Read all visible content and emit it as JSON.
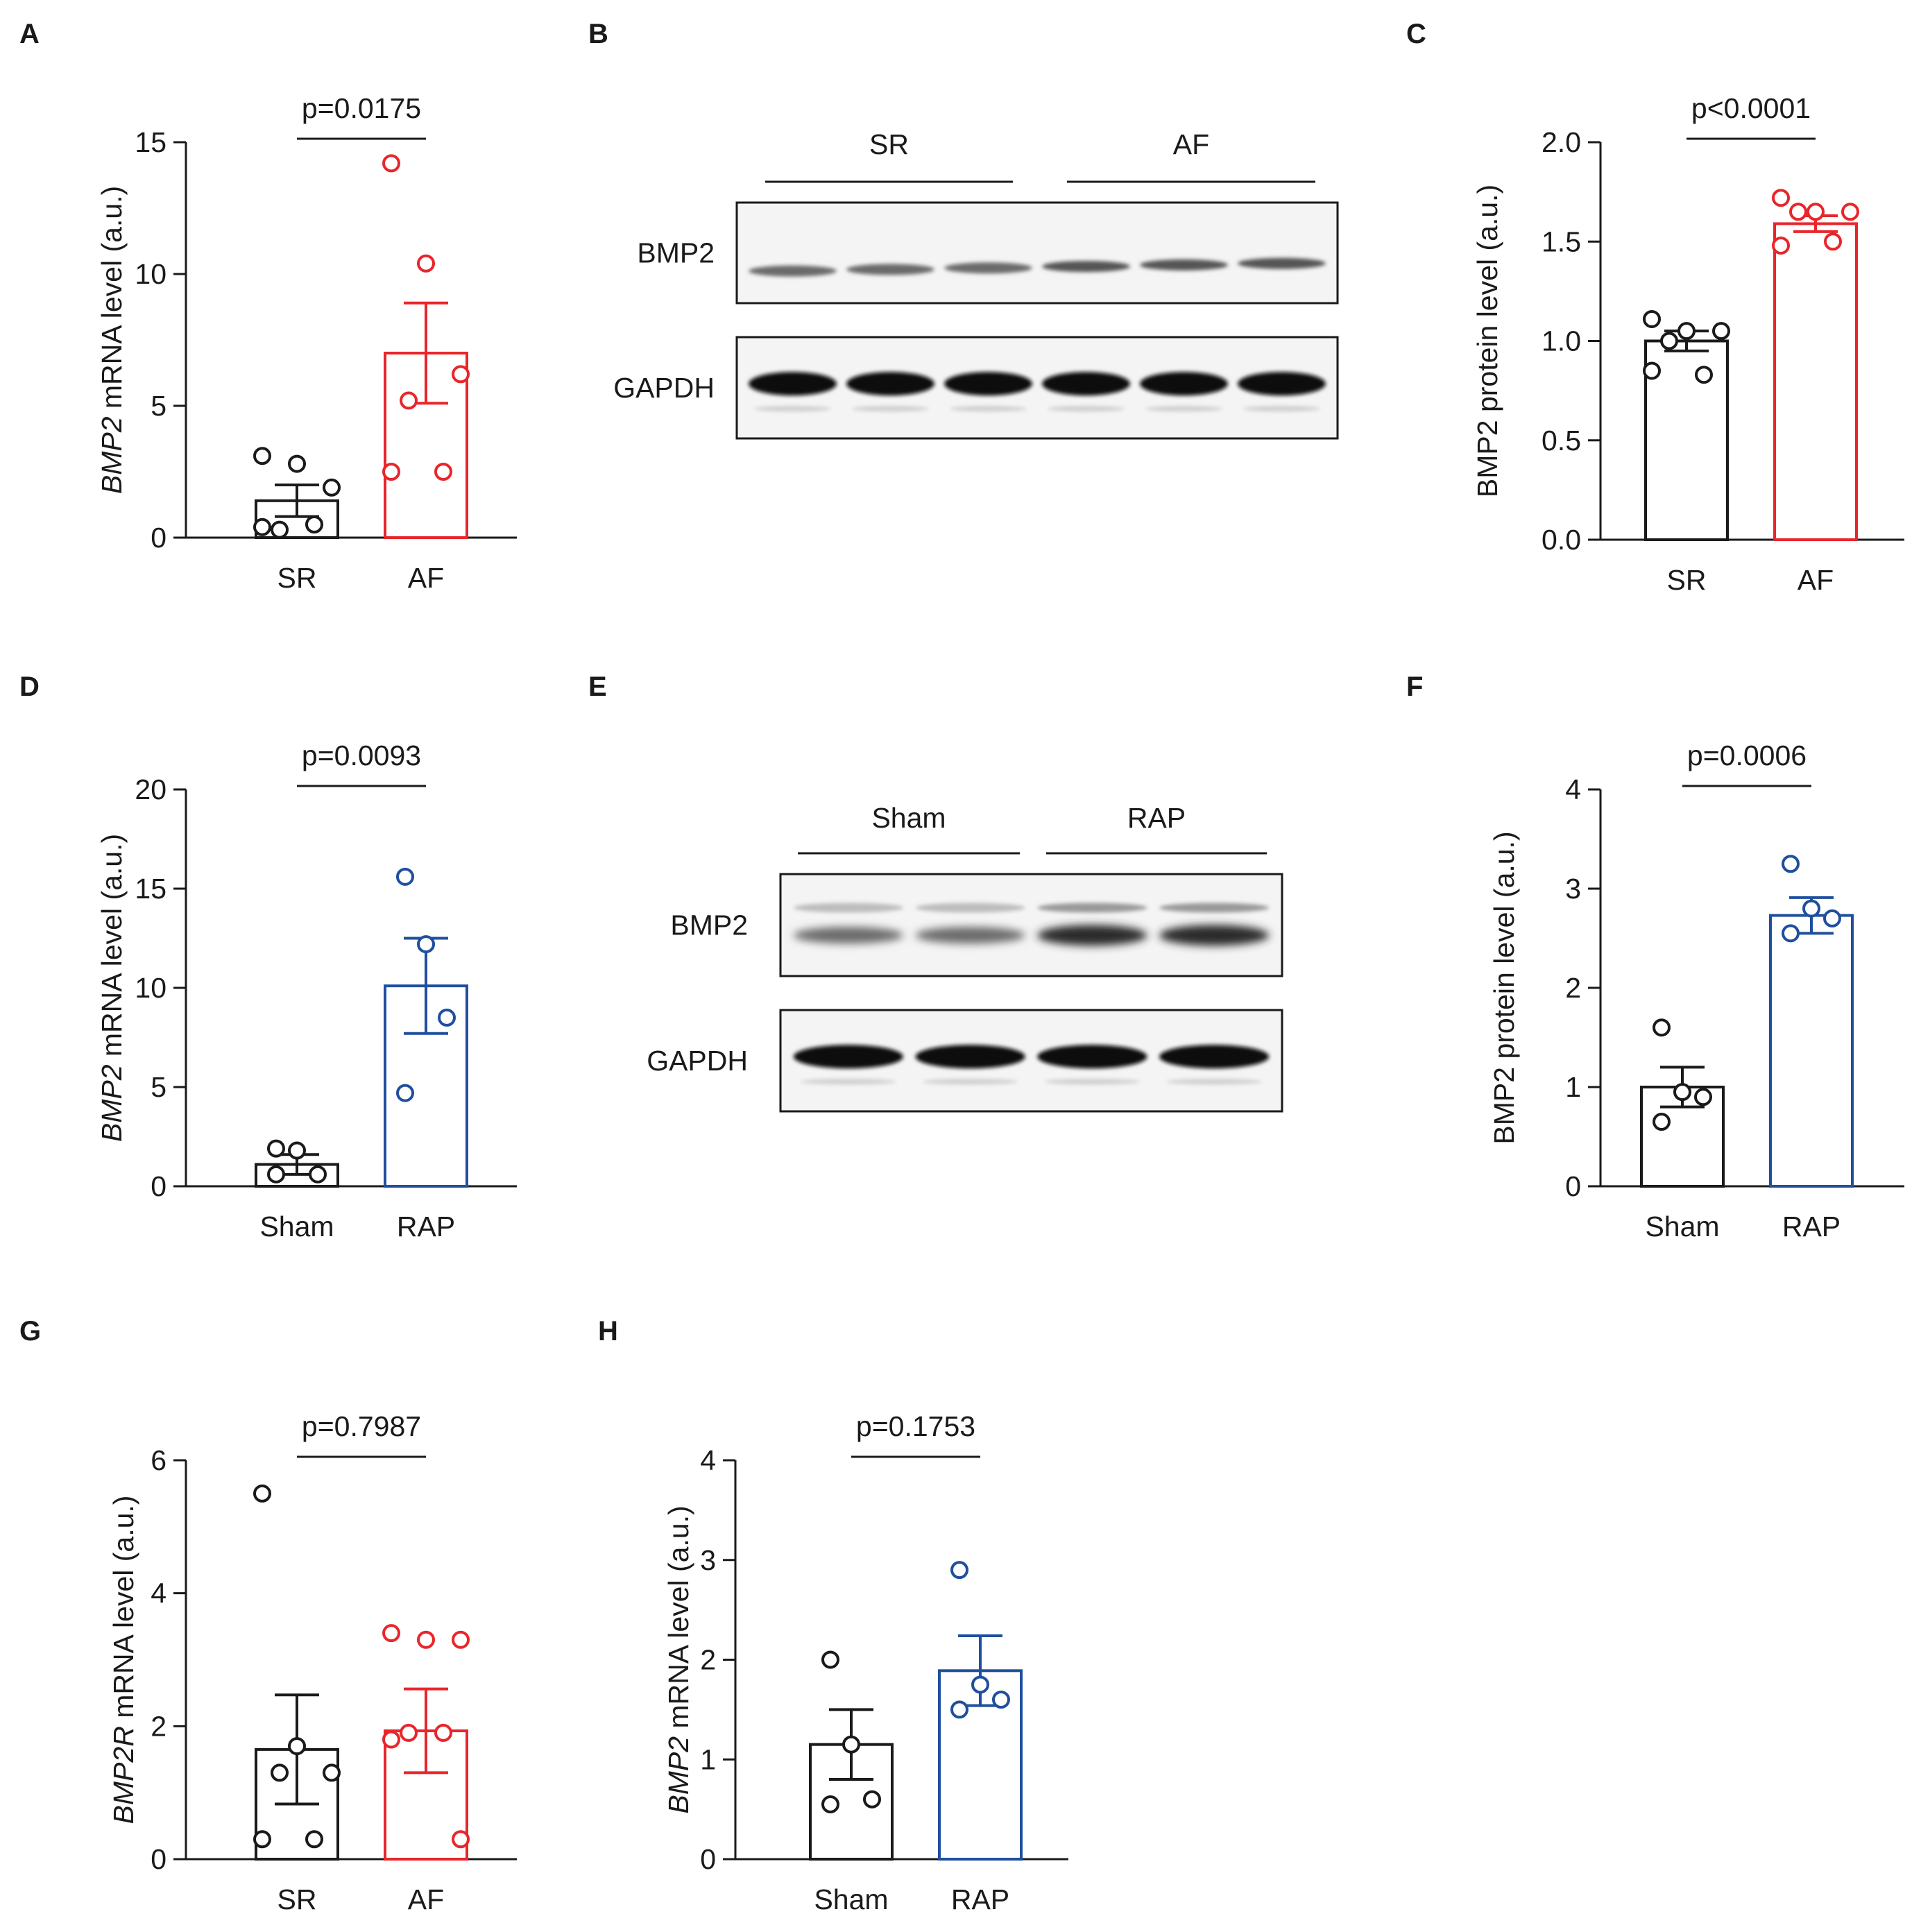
{
  "figure": {
    "background": "#ffffff"
  },
  "colors": {
    "black": "#1a1a1a",
    "red": "#e8262b",
    "blue": "#1f4f9e"
  },
  "blots": {
    "B": {
      "letter": "B",
      "header_groups": [
        "SR",
        "AF"
      ],
      "rows": [
        {
          "label": "BMP2",
          "kind": "bmp2_human",
          "lanes": 6
        },
        {
          "label": "GAPDH",
          "kind": "gapdh",
          "lanes": 6
        }
      ]
    },
    "E": {
      "letter": "E",
      "header_groups": [
        "Sham",
        "RAP"
      ],
      "rows": [
        {
          "label": "BMP2",
          "kind": "bmp2_rat",
          "lanes": 4
        },
        {
          "label": "GAPDH",
          "kind": "gapdh",
          "lanes": 4
        }
      ]
    }
  },
  "chart_data": [
    {
      "panel": "A",
      "type": "bar",
      "title": "",
      "ylabel_italic": "BMP2",
      "ylabel_rest": " mRNA level (a.u.)",
      "ylim": [
        0,
        15
      ],
      "yticks": [
        "0",
        "5",
        "10",
        "15"
      ],
      "pvalue": "p=0.0175",
      "categories": [
        "SR",
        "AF"
      ],
      "means": [
        1.4,
        7.0
      ],
      "sem": [
        0.6,
        1.9
      ],
      "points": [
        [
          3.1,
          2.8,
          1.9,
          0.3,
          0.5,
          0.4
        ],
        [
          14.2,
          10.4,
          6.2,
          5.2,
          2.5,
          2.5
        ]
      ],
      "series_colors": [
        "black",
        "red"
      ]
    },
    {
      "panel": "C",
      "type": "bar",
      "title": "",
      "ylabel_italic": "",
      "ylabel_rest": "BMP2 protein level (a.u.)",
      "ylim": [
        0,
        2.0
      ],
      "yticks": [
        "0.0",
        "0.5",
        "1.0",
        "1.5",
        "2.0"
      ],
      "pvalue": "p<0.0001",
      "categories": [
        "SR",
        "AF"
      ],
      "means": [
        1.0,
        1.59
      ],
      "sem": [
        0.05,
        0.04
      ],
      "points": [
        [
          1.11,
          1.05,
          1.05,
          1.0,
          0.83,
          0.85
        ],
        [
          1.72,
          1.65,
          1.65,
          1.65,
          1.5,
          1.48
        ]
      ],
      "series_colors": [
        "black",
        "red"
      ]
    },
    {
      "panel": "D",
      "type": "bar",
      "title": "",
      "ylabel_italic": "BMP2",
      "ylabel_rest": " mRNA level (a.u.)",
      "ylim": [
        0,
        20
      ],
      "yticks": [
        "0",
        "5",
        "10",
        "15",
        "20"
      ],
      "pvalue": "p=0.0093",
      "categories": [
        "Sham",
        "RAP"
      ],
      "means": [
        1.1,
        10.1
      ],
      "sem": [
        0.5,
        2.4
      ],
      "points": [
        [
          1.9,
          1.8,
          0.6,
          0.6
        ],
        [
          15.6,
          12.2,
          8.5,
          4.7
        ]
      ],
      "series_colors": [
        "black",
        "blue"
      ]
    },
    {
      "panel": "F",
      "type": "bar",
      "title": "",
      "ylabel_italic": "",
      "ylabel_rest": "BMP2 protein level (a.u.)",
      "ylim": [
        0,
        4
      ],
      "yticks": [
        "0",
        "1",
        "2",
        "3",
        "4"
      ],
      "pvalue": "p=0.0006",
      "categories": [
        "Sham",
        "RAP"
      ],
      "means": [
        1.0,
        2.73
      ],
      "sem": [
        0.2,
        0.18
      ],
      "points": [
        [
          1.6,
          0.95,
          0.9,
          0.65
        ],
        [
          3.25,
          2.8,
          2.7,
          2.55
        ]
      ],
      "series_colors": [
        "black",
        "blue"
      ]
    },
    {
      "panel": "G",
      "type": "bar",
      "title": "",
      "ylabel_italic": "BMP2R",
      "ylabel_rest": " mRNA level (a.u.)",
      "ylim": [
        0,
        6
      ],
      "yticks": [
        "0",
        "2",
        "4",
        "6"
      ],
      "pvalue": "p=0.7987",
      "categories": [
        "SR",
        "AF"
      ],
      "means": [
        1.65,
        1.93
      ],
      "sem": [
        0.82,
        0.63
      ],
      "points": [
        [
          5.5,
          1.7,
          1.3,
          1.3,
          0.3,
          0.3
        ],
        [
          3.4,
          3.3,
          3.3,
          1.9,
          1.9,
          1.8,
          0.3
        ]
      ],
      "series_colors": [
        "black",
        "red"
      ]
    },
    {
      "panel": "H",
      "type": "bar",
      "title": "",
      "ylabel_italic": "BMP2",
      "ylabel_rest": " mRNA level (a.u.)",
      "ylim": [
        0,
        4
      ],
      "yticks": [
        "0",
        "1",
        "2",
        "3",
        "4"
      ],
      "pvalue": "p=0.1753",
      "categories": [
        "Sham",
        "RAP"
      ],
      "means": [
        1.15,
        1.89
      ],
      "sem": [
        0.35,
        0.35
      ],
      "points": [
        [
          2.0,
          1.15,
          0.6,
          0.55
        ],
        [
          2.9,
          1.75,
          1.6,
          1.5
        ]
      ],
      "series_colors": [
        "black",
        "blue"
      ]
    }
  ]
}
